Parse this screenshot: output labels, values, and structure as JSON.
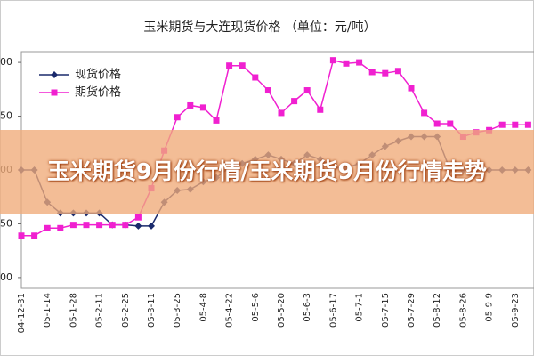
{
  "chart_data": {
    "type": "line",
    "title": "玉米期货与大连现货价格 （单位：元/吨）",
    "categories": [
      "04-12-31",
      null,
      "05-1-14",
      null,
      "05-1-28",
      null,
      "05-2-11",
      null,
      "05-2-25",
      null,
      "05-3-11",
      null,
      "05-3-25",
      null,
      "05-4-8",
      null,
      "05-4-22",
      null,
      "05-5-6",
      null,
      "05-5-20",
      null,
      "05-6-3",
      null,
      "05-6-17",
      null,
      "05-7-1",
      null,
      "05-7-15",
      null,
      "05-7-29",
      null,
      "05-8-12",
      null,
      "05-8-26",
      null,
      "05-9-9",
      null,
      "05-9-23",
      null
    ],
    "series": [
      {
        "name": "现货价格",
        "color": "#1a2a6c",
        "marker": "diamond",
        "values": [
          1200,
          1200,
          1170,
          1160,
          1160,
          1160,
          1160,
          1149,
          1149,
          1148,
          1148,
          1170,
          1181,
          1182,
          1189,
          1193,
          1202,
          1206,
          1210,
          1214,
          1210,
          1206,
          1214,
          1210,
          1202,
          1202,
          1206,
          1214,
          1222,
          1227,
          1231,
          1231,
          1231,
          1200,
          1200,
          1200,
          1200,
          1200,
          1200,
          1200
        ]
      },
      {
        "name": "期货价格",
        "color": "#f020d0",
        "marker": "square",
        "values": [
          1139,
          1139,
          1146,
          1146,
          1149,
          1149,
          1149,
          1149,
          1149,
          1156,
          1183,
          1218,
          1249,
          1260,
          1258,
          1246,
          1297,
          1297,
          1286,
          1274,
          1253,
          1264,
          1274,
          1256,
          1302,
          1299,
          1300,
          1291,
          1290,
          1292,
          1276,
          1253,
          1243,
          1243,
          1231,
          1235,
          1237,
          1242,
          1242,
          1242
        ]
      }
    ],
    "ylim": [
      1090,
      1310
    ],
    "yticks": [
      1100,
      1150,
      1200,
      1250,
      1300
    ],
    "grid": false,
    "legend": "top-left"
  },
  "banner": {
    "text": "玉米期货9月份行情/玉米期货9月份行情走势"
  }
}
